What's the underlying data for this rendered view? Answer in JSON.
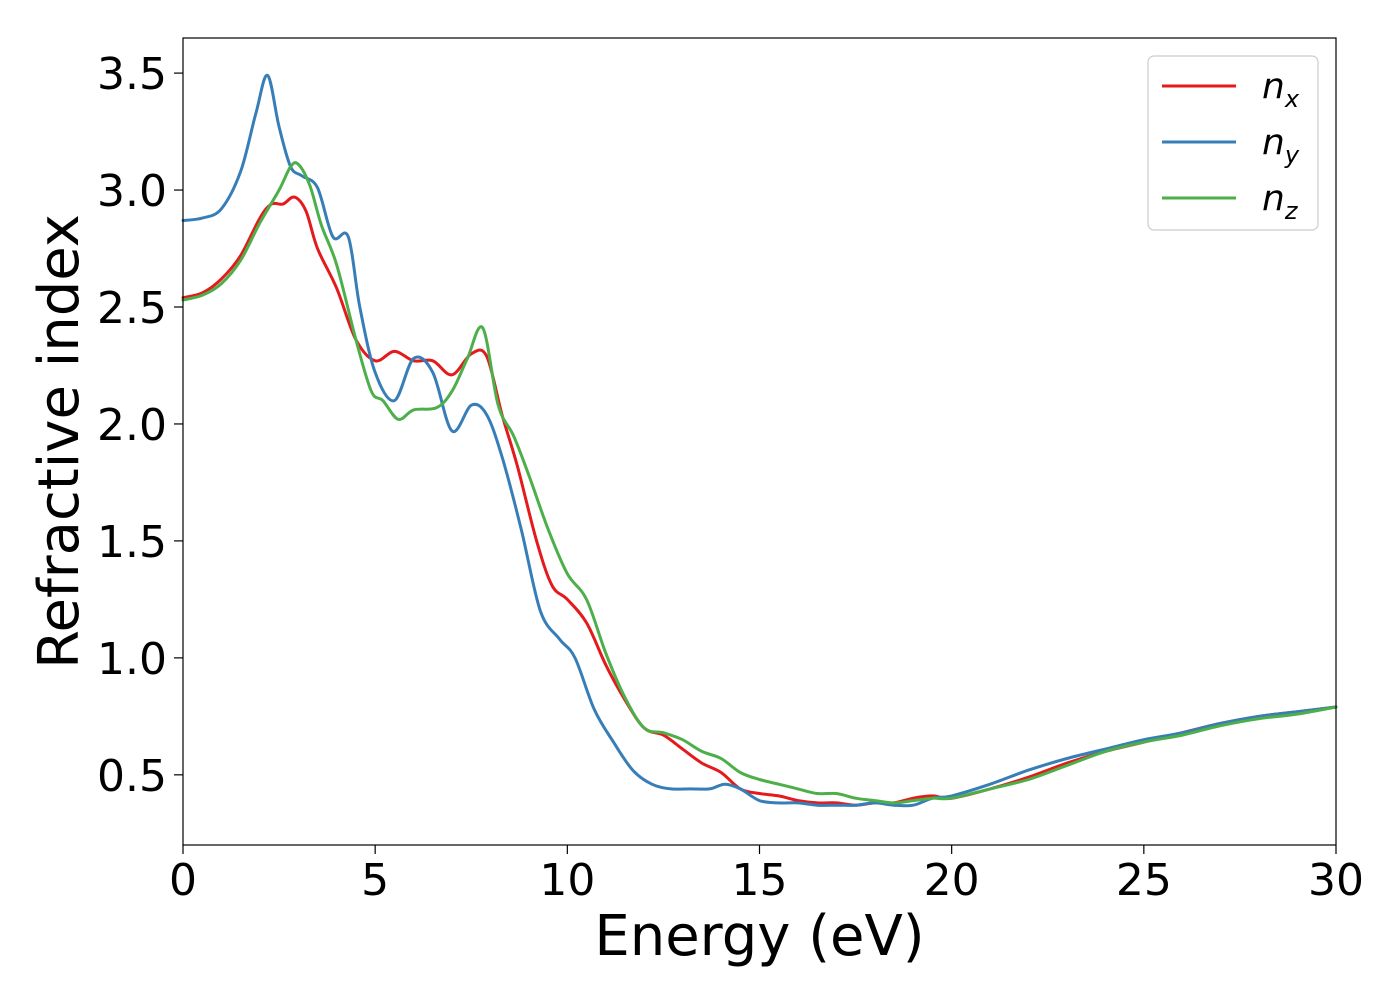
{
  "chart_data": {
    "type": "line",
    "title": "",
    "xlabel": "Energy (eV)",
    "ylabel": "Refractive index",
    "xlim": [
      0,
      30
    ],
    "ylim": [
      0.2,
      3.65
    ],
    "xticks": [
      0,
      5,
      10,
      15,
      20,
      25,
      30
    ],
    "xtick_labels": [
      "0",
      "5",
      "10",
      "15",
      "20",
      "25",
      "30"
    ],
    "yticks": [
      0.5,
      1.0,
      1.5,
      2.0,
      2.5,
      3.0,
      3.5
    ],
    "ytick_labels": [
      "0.5",
      "1.0",
      "1.5",
      "2.0",
      "2.5",
      "3.0",
      "3.5"
    ],
    "grid": false,
    "legend_position": "top-right",
    "series": [
      {
        "name": "n_x",
        "label_base": "n",
        "label_sub": "x",
        "color": "#e41a1c",
        "x": [
          0,
          0.5,
          1.0,
          1.5,
          2.0,
          2.3,
          2.6,
          2.9,
          3.2,
          3.5,
          4.0,
          4.5,
          5.0,
          5.5,
          6.0,
          6.5,
          7.0,
          7.5,
          7.9,
          8.3,
          8.7,
          9.2,
          9.6,
          10.0,
          10.5,
          11.0,
          11.5,
          12.0,
          12.5,
          13.0,
          13.5,
          14.0,
          14.5,
          15.0,
          15.5,
          16.0,
          16.5,
          17.0,
          17.5,
          18.0,
          18.5,
          19.0,
          19.5,
          20.0,
          21.0,
          22.0,
          23.0,
          24.0,
          25.0,
          26.0,
          27.0,
          28.0,
          29.0,
          30.0
        ],
        "y": [
          2.54,
          2.56,
          2.62,
          2.72,
          2.88,
          2.94,
          2.94,
          2.97,
          2.91,
          2.75,
          2.58,
          2.36,
          2.27,
          2.31,
          2.27,
          2.27,
          2.21,
          2.3,
          2.29,
          2.04,
          1.82,
          1.5,
          1.31,
          1.25,
          1.15,
          0.97,
          0.82,
          0.7,
          0.67,
          0.61,
          0.55,
          0.51,
          0.44,
          0.42,
          0.41,
          0.39,
          0.38,
          0.38,
          0.37,
          0.38,
          0.38,
          0.4,
          0.41,
          0.4,
          0.44,
          0.49,
          0.55,
          0.6,
          0.64,
          0.68,
          0.72,
          0.75,
          0.77,
          0.79
        ]
      },
      {
        "name": "n_y",
        "label_base": "n",
        "label_sub": "y",
        "color": "#377eb8",
        "x": [
          0,
          0.5,
          1.0,
          1.5,
          1.9,
          2.2,
          2.5,
          2.8,
          3.1,
          3.5,
          3.9,
          4.3,
          4.6,
          5.0,
          5.5,
          6.0,
          6.5,
          7.0,
          7.5,
          7.9,
          8.3,
          8.8,
          9.3,
          9.8,
          10.2,
          10.7,
          11.2,
          11.7,
          12.2,
          12.7,
          13.2,
          13.7,
          14.1,
          14.5,
          15.0,
          15.5,
          16.0,
          16.5,
          17.0,
          17.5,
          18.0,
          18.5,
          19.0,
          19.5,
          20.0,
          21.0,
          22.0,
          23.0,
          24.0,
          25.0,
          26.0,
          27.0,
          28.0,
          29.0,
          30.0
        ],
        "y": [
          2.87,
          2.88,
          2.92,
          3.08,
          3.33,
          3.49,
          3.27,
          3.1,
          3.06,
          3.01,
          2.8,
          2.8,
          2.5,
          2.22,
          2.1,
          2.28,
          2.22,
          1.97,
          2.08,
          2.04,
          1.86,
          1.55,
          1.2,
          1.08,
          1.0,
          0.78,
          0.64,
          0.52,
          0.46,
          0.44,
          0.44,
          0.44,
          0.46,
          0.44,
          0.39,
          0.38,
          0.38,
          0.37,
          0.37,
          0.37,
          0.38,
          0.37,
          0.37,
          0.4,
          0.41,
          0.46,
          0.52,
          0.57,
          0.61,
          0.65,
          0.68,
          0.72,
          0.75,
          0.77,
          0.79
        ]
      },
      {
        "name": "n_z",
        "label_base": "n",
        "label_sub": "z",
        "color": "#4daf4a",
        "x": [
          0,
          0.5,
          1.0,
          1.5,
          2.0,
          2.5,
          2.8,
          3.0,
          3.3,
          3.6,
          4.0,
          4.5,
          4.9,
          5.2,
          5.6,
          6.0,
          6.6,
          7.0,
          7.4,
          7.8,
          8.2,
          8.6,
          9.0,
          9.5,
          10.0,
          10.5,
          11.0,
          11.5,
          12.0,
          12.5,
          13.0,
          13.5,
          14.0,
          14.5,
          15.0,
          15.5,
          16.0,
          16.5,
          17.0,
          17.5,
          18.0,
          18.5,
          19.0,
          19.5,
          20.0,
          21.0,
          22.0,
          23.0,
          24.0,
          25.0,
          26.0,
          27.0,
          28.0,
          29.0,
          30.0
        ],
        "y": [
          2.53,
          2.55,
          2.6,
          2.7,
          2.86,
          3.0,
          3.1,
          3.11,
          3.02,
          2.85,
          2.68,
          2.36,
          2.14,
          2.1,
          2.02,
          2.06,
          2.07,
          2.14,
          2.28,
          2.41,
          2.08,
          1.95,
          1.78,
          1.55,
          1.36,
          1.25,
          1.02,
          0.83,
          0.7,
          0.68,
          0.65,
          0.6,
          0.57,
          0.51,
          0.48,
          0.46,
          0.44,
          0.42,
          0.42,
          0.4,
          0.39,
          0.38,
          0.39,
          0.4,
          0.4,
          0.44,
          0.48,
          0.54,
          0.6,
          0.64,
          0.67,
          0.71,
          0.74,
          0.76,
          0.79
        ]
      }
    ]
  }
}
